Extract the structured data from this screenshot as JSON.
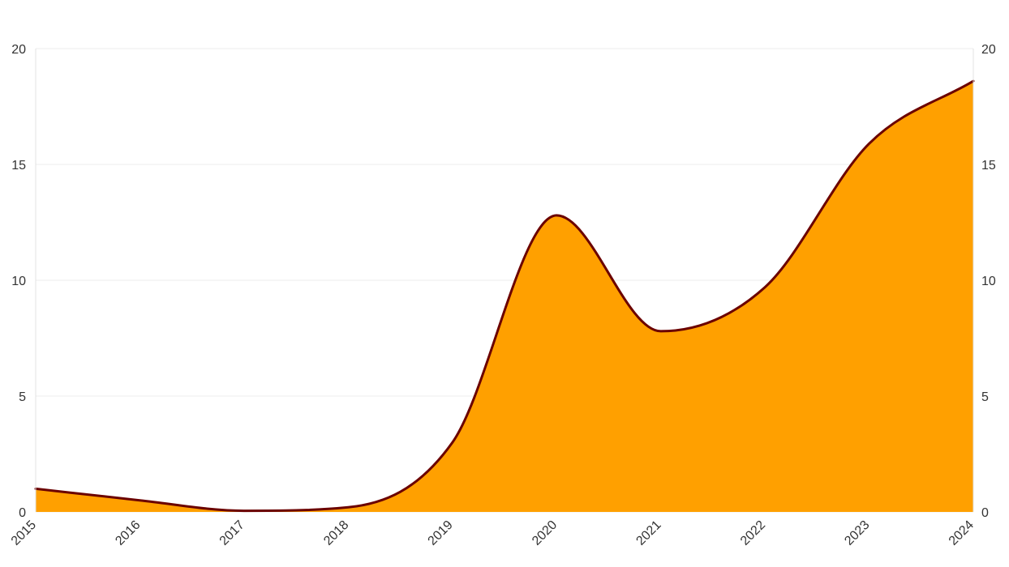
{
  "chart_data": {
    "type": "area",
    "title": "",
    "xlabel": "",
    "ylabel": "",
    "x": [
      "2015",
      "2016",
      "2017",
      "2018",
      "2019",
      "2020",
      "2021",
      "2022",
      "2023",
      "2024"
    ],
    "series": [
      {
        "values": [
          1.0,
          0.5,
          0.05,
          0.2,
          3.0,
          12.8,
          7.8,
          9.7,
          15.9,
          18.6
        ]
      }
    ],
    "ylim": [
      0,
      20
    ],
    "yticks": [
      0,
      5,
      10,
      15,
      20
    ],
    "y_axes": [
      "left",
      "right"
    ],
    "grid": true,
    "fill_color": "#FFA000",
    "line_color": "#6B0000",
    "curve": "smooth"
  }
}
